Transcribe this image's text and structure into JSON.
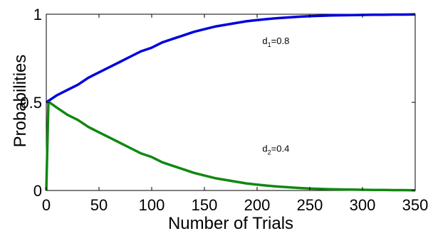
{
  "chart_data": {
    "type": "line",
    "xlabel": "Number of Trials",
    "ylabel": "Probabilities",
    "xlim": [
      0,
      350
    ],
    "ylim": [
      0,
      1
    ],
    "grid": false,
    "legend": "none",
    "xticks": [
      "0",
      "50",
      "100",
      "150",
      "200",
      "250",
      "300",
      "350"
    ],
    "yticks": [
      "0",
      "0.5",
      "1"
    ],
    "annotations": [
      {
        "base": "d",
        "sub": "1",
        "rest": "=0.8",
        "x": 205,
        "y": 0.83
      },
      {
        "base": "d",
        "sub": "2",
        "rest": "=0.4",
        "x": 205,
        "y": 0.22
      }
    ],
    "series": [
      {
        "color": "#0000dd",
        "x": [
          0,
          10,
          20,
          30,
          40,
          50,
          60,
          70,
          80,
          90,
          100,
          110,
          120,
          130,
          140,
          150,
          160,
          170,
          180,
          190,
          200,
          210,
          220,
          230,
          240,
          250,
          260,
          270,
          280,
          290,
          300,
          310,
          320,
          330,
          340,
          350
        ],
        "y": [
          0.5,
          0.54,
          0.57,
          0.6,
          0.64,
          0.67,
          0.7,
          0.73,
          0.76,
          0.79,
          0.81,
          0.84,
          0.86,
          0.88,
          0.9,
          0.915,
          0.93,
          0.94,
          0.95,
          0.96,
          0.967,
          0.973,
          0.978,
          0.982,
          0.986,
          0.989,
          0.991,
          0.993,
          0.994,
          0.995,
          0.996,
          0.997,
          0.997,
          0.998,
          0.998,
          0.999
        ]
      },
      {
        "color": "#118811",
        "x": [
          0,
          2,
          3,
          10,
          20,
          30,
          40,
          50,
          60,
          70,
          80,
          90,
          100,
          110,
          120,
          130,
          140,
          150,
          160,
          170,
          180,
          190,
          200,
          210,
          220,
          230,
          240,
          250,
          260,
          270,
          280,
          290,
          300,
          310,
          320,
          330,
          340,
          350
        ],
        "y": [
          0,
          0.5,
          0.5,
          0.47,
          0.43,
          0.4,
          0.36,
          0.33,
          0.3,
          0.27,
          0.24,
          0.21,
          0.19,
          0.16,
          0.14,
          0.12,
          0.1,
          0.085,
          0.07,
          0.06,
          0.05,
          0.04,
          0.033,
          0.027,
          0.022,
          0.018,
          0.014,
          0.011,
          0.009,
          0.007,
          0.006,
          0.005,
          0.004,
          0.003,
          0.003,
          0.002,
          0.002,
          0.001
        ]
      }
    ]
  }
}
